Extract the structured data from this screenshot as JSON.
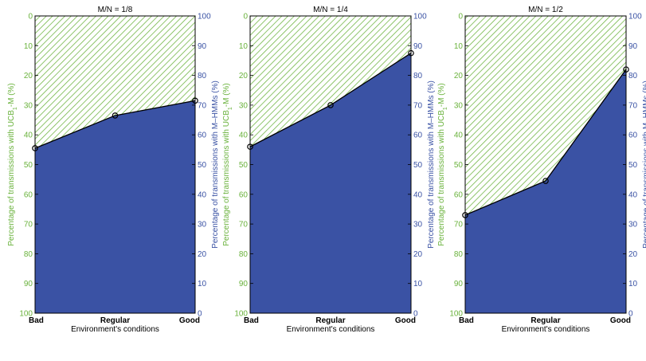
{
  "figure": {
    "x_label": "Environment's conditions",
    "left_axis_label": "Percentage of transmissions with UCB",
    "left_axis_label_sub": "1",
    "left_axis_label_suffix": "-M  (%)",
    "right_axis_label": "Percentage of transmissions with M–HMMs  (%)"
  },
  "colors": {
    "hmm_fill": "#3a52a4",
    "ucb_hatch": "#6ab23c",
    "left_axis_text": "#6ab23c",
    "right_axis_text": "#3a52a4",
    "axis_line": "#000000"
  },
  "chart_data": [
    {
      "type": "area",
      "title": "M/N = 1/8",
      "categories": [
        "Bad",
        "Regular",
        "Good"
      ],
      "series": [
        {
          "name": "UCB1-M",
          "values": [
            44.5,
            33.5,
            28.5
          ]
        },
        {
          "name": "M–HMMs",
          "values": [
            55.5,
            66.5,
            71.5
          ]
        }
      ],
      "left_axis": {
        "ylim": [
          0,
          100
        ],
        "inverted": true,
        "ticks": [
          0,
          10,
          20,
          30,
          40,
          50,
          60,
          70,
          80,
          90,
          100
        ]
      },
      "right_axis": {
        "ylim": [
          0,
          100
        ],
        "ticks": [
          0,
          10,
          20,
          30,
          40,
          50,
          60,
          70,
          80,
          90,
          100
        ]
      },
      "grid": false
    },
    {
      "type": "area",
      "title": "M/N = 1/4",
      "categories": [
        "Bad",
        "Regular",
        "Good"
      ],
      "series": [
        {
          "name": "UCB1-M",
          "values": [
            44.0,
            30.0,
            12.5
          ]
        },
        {
          "name": "M–HMMs",
          "values": [
            56.0,
            70.0,
            87.5
          ]
        }
      ],
      "left_axis": {
        "ylim": [
          0,
          100
        ],
        "inverted": true,
        "ticks": [
          0,
          10,
          20,
          30,
          40,
          50,
          60,
          70,
          80,
          90,
          100
        ]
      },
      "right_axis": {
        "ylim": [
          0,
          100
        ],
        "ticks": [
          0,
          10,
          20,
          30,
          40,
          50,
          60,
          70,
          80,
          90,
          100
        ]
      },
      "grid": false
    },
    {
      "type": "area",
      "title": "M/N = 1/2",
      "categories": [
        "Bad",
        "Regular",
        "Good"
      ],
      "series": [
        {
          "name": "UCB1-M",
          "values": [
            67.0,
            55.5,
            18.0
          ]
        },
        {
          "name": "M–HMMs",
          "values": [
            33.0,
            44.5,
            82.0
          ]
        }
      ],
      "left_axis": {
        "ylim": [
          0,
          100
        ],
        "inverted": true,
        "ticks": [
          0,
          10,
          20,
          30,
          40,
          50,
          60,
          70,
          80,
          90,
          100
        ]
      },
      "right_axis": {
        "ylim": [
          0,
          100
        ],
        "ticks": [
          0,
          10,
          20,
          30,
          40,
          50,
          60,
          70,
          80,
          90,
          100
        ]
      },
      "grid": false
    }
  ]
}
